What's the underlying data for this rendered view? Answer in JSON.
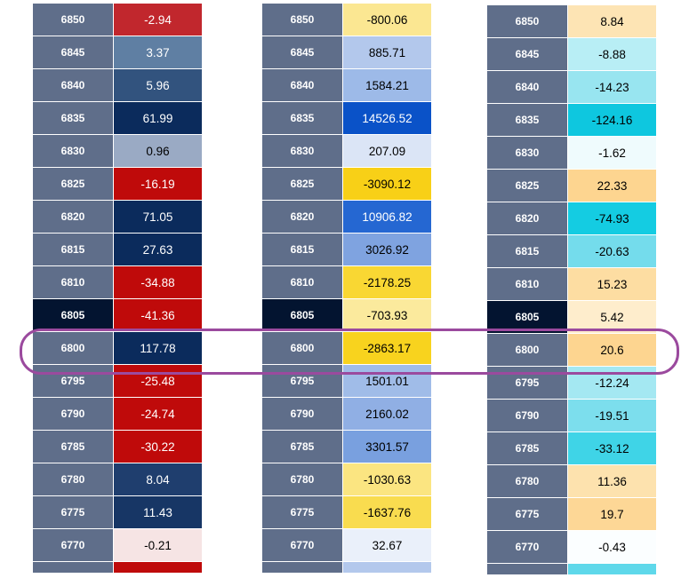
{
  "tables": [
    {
      "id": "t1",
      "rows": [
        {
          "strike": "6850",
          "value": "-2.94",
          "bg": "#c1272d",
          "fg": "#ffffff"
        },
        {
          "strike": "6845",
          "value": "3.37",
          "bg": "#5f7fa3",
          "fg": "#ffffff"
        },
        {
          "strike": "6840",
          "value": "5.96",
          "bg": "#32537e",
          "fg": "#ffffff"
        },
        {
          "strike": "6835",
          "value": "61.99",
          "bg": "#0b2b5c",
          "fg": "#ffffff"
        },
        {
          "strike": "6830",
          "value": "0.96",
          "bg": "#9aaac4",
          "fg": "#000000"
        },
        {
          "strike": "6825",
          "value": "-16.19",
          "bg": "#bf0a0a",
          "fg": "#ffffff"
        },
        {
          "strike": "6820",
          "value": "71.05",
          "bg": "#0b2b5c",
          "fg": "#ffffff"
        },
        {
          "strike": "6815",
          "value": "27.63",
          "bg": "#0b2b5c",
          "fg": "#ffffff"
        },
        {
          "strike": "6810",
          "value": "-34.88",
          "bg": "#bf0a0a",
          "fg": "#ffffff"
        },
        {
          "strike": "6805",
          "value": "-41.36",
          "bg": "#bf0a0a",
          "fg": "#ffffff",
          "atm": true
        },
        {
          "strike": "6800",
          "value": "117.78",
          "bg": "#0b2b5c",
          "fg": "#ffffff"
        },
        {
          "strike": "6795",
          "value": "-25.48",
          "bg": "#bf0a0a",
          "fg": "#ffffff"
        },
        {
          "strike": "6790",
          "value": "-24.74",
          "bg": "#bf0a0a",
          "fg": "#ffffff"
        },
        {
          "strike": "6785",
          "value": "-30.22",
          "bg": "#bf0a0a",
          "fg": "#ffffff"
        },
        {
          "strike": "6780",
          "value": "8.04",
          "bg": "#1f3e6e",
          "fg": "#ffffff"
        },
        {
          "strike": "6775",
          "value": "11.43",
          "bg": "#173665",
          "fg": "#ffffff"
        },
        {
          "strike": "6770",
          "value": "-0.21",
          "bg": "#f6e4e4",
          "fg": "#000000"
        }
      ],
      "bottom_bg": "#bf0a0a"
    },
    {
      "id": "t2",
      "rows": [
        {
          "strike": "6850",
          "value": "-800.06",
          "bg": "#fbe792",
          "fg": "#000000"
        },
        {
          "strike": "6845",
          "value": "885.71",
          "bg": "#b3c8ec",
          "fg": "#000000"
        },
        {
          "strike": "6840",
          "value": "1584.21",
          "bg": "#9dbae8",
          "fg": "#000000"
        },
        {
          "strike": "6835",
          "value": "14526.52",
          "bg": "#0a52c8",
          "fg": "#ffffff"
        },
        {
          "strike": "6830",
          "value": "207.09",
          "bg": "#dbe5f6",
          "fg": "#000000"
        },
        {
          "strike": "6825",
          "value": "-3090.12",
          "bg": "#f8d017",
          "fg": "#000000"
        },
        {
          "strike": "6820",
          "value": "10906.82",
          "bg": "#2567d2",
          "fg": "#ffffff"
        },
        {
          "strike": "6815",
          "value": "3026.92",
          "bg": "#7fa3e0",
          "fg": "#000000"
        },
        {
          "strike": "6810",
          "value": "-2178.25",
          "bg": "#f9d733",
          "fg": "#000000"
        },
        {
          "strike": "6805",
          "value": "-703.93",
          "bg": "#fbea9d",
          "fg": "#000000",
          "atm": true
        },
        {
          "strike": "6800",
          "value": "-2863.17",
          "bg": "#f8d31e",
          "fg": "#000000"
        },
        {
          "strike": "6795",
          "value": "1501.01",
          "bg": "#a0bce8",
          "fg": "#000000"
        },
        {
          "strike": "6790",
          "value": "2160.02",
          "bg": "#90afe4",
          "fg": "#000000"
        },
        {
          "strike": "6785",
          "value": "3301.57",
          "bg": "#79a0df",
          "fg": "#000000"
        },
        {
          "strike": "6780",
          "value": "-1030.63",
          "bg": "#fbe581",
          "fg": "#000000"
        },
        {
          "strike": "6775",
          "value": "-1637.76",
          "bg": "#f9dc4f",
          "fg": "#000000"
        },
        {
          "strike": "6770",
          "value": "32.67",
          "bg": "#eaf0fa",
          "fg": "#000000"
        }
      ],
      "bottom_bg": "#b3c8ec"
    },
    {
      "id": "t3",
      "rows": [
        {
          "strike": "6850",
          "value": "8.84",
          "bg": "#fde4b4",
          "fg": "#000000"
        },
        {
          "strike": "6845",
          "value": "-8.88",
          "bg": "#b8eef5",
          "fg": "#000000"
        },
        {
          "strike": "6840",
          "value": "-14.23",
          "bg": "#98e5f0",
          "fg": "#000000"
        },
        {
          "strike": "6835",
          "value": "-124.16",
          "bg": "#0ec7df",
          "fg": "#000000"
        },
        {
          "strike": "6830",
          "value": "-1.62",
          "bg": "#effbfd",
          "fg": "#000000"
        },
        {
          "strike": "6825",
          "value": "22.33",
          "bg": "#fdd590",
          "fg": "#000000"
        },
        {
          "strike": "6820",
          "value": "-74.93",
          "bg": "#14cce2",
          "fg": "#000000"
        },
        {
          "strike": "6815",
          "value": "-20.63",
          "bg": "#74dcec",
          "fg": "#000000"
        },
        {
          "strike": "6810",
          "value": "15.23",
          "bg": "#fddda2",
          "fg": "#000000"
        },
        {
          "strike": "6805",
          "value": "5.42",
          "bg": "#feedcc",
          "fg": "#000000",
          "atm": true
        },
        {
          "strike": "6800",
          "value": "20.6",
          "bg": "#fdd590",
          "fg": "#000000"
        },
        {
          "strike": "6795",
          "value": "-12.24",
          "bg": "#a4e8f2",
          "fg": "#000000"
        },
        {
          "strike": "6790",
          "value": "-19.51",
          "bg": "#7cdeed",
          "fg": "#000000"
        },
        {
          "strike": "6785",
          "value": "-33.12",
          "bg": "#3fd4e7",
          "fg": "#000000"
        },
        {
          "strike": "6780",
          "value": "11.36",
          "bg": "#fde2ae",
          "fg": "#000000"
        },
        {
          "strike": "6775",
          "value": "19.7",
          "bg": "#fdd796",
          "fg": "#000000"
        },
        {
          "strike": "6770",
          "value": "-0.43",
          "bg": "#fbfeff",
          "fg": "#000000"
        }
      ],
      "bottom_bg": "#5fd8ea"
    }
  ],
  "highlight": {
    "strike": "6800",
    "color": "#9b4a9e"
  }
}
